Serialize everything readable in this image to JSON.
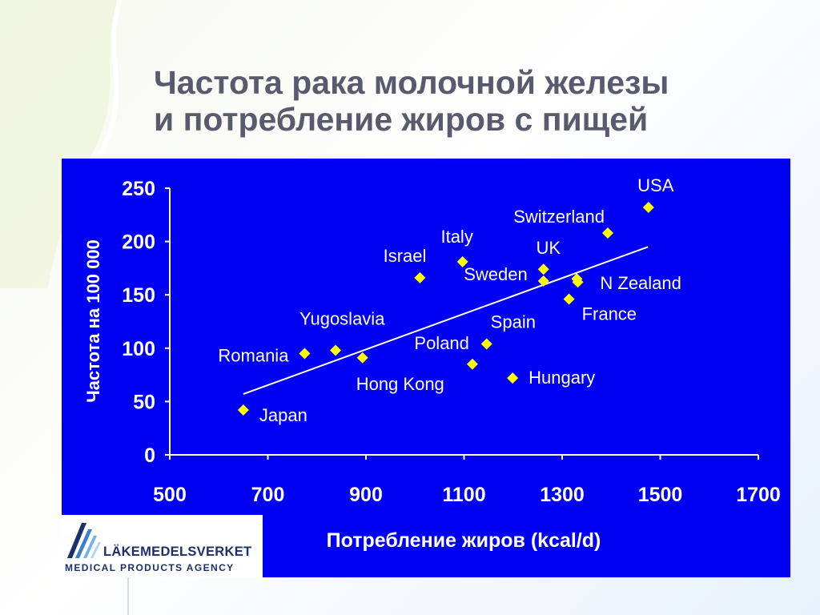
{
  "slide": {
    "title_line1": "Частота рака молочной железы",
    "title_line2": "и потребление жиров с пищей"
  },
  "logo": {
    "name": "LÄKEMEDELSVERKET",
    "subtitle": "MEDICAL PRODUCTS AGENCY"
  },
  "colors": {
    "panel": "#0000f2",
    "marker": "#ffff00",
    "axis": "#ffffff",
    "title": "#5a5a6e"
  },
  "chart_data": {
    "type": "scatter",
    "title": "",
    "xlabel": "Потребление жиров (kcal/d)",
    "ylabel": "Частота на 100 000",
    "xlim": [
      500,
      1700
    ],
    "ylim": [
      0,
      250
    ],
    "xticks": [
      500,
      700,
      900,
      1100,
      1300,
      1500,
      1700
    ],
    "yticks": [
      0,
      50,
      100,
      150,
      200,
      250
    ],
    "grid": false,
    "legend": "none",
    "points": [
      {
        "label": "Japan",
        "x": 650,
        "y": 42
      },
      {
        "label": "Romania",
        "x": 775,
        "y": 95
      },
      {
        "label": "Yugoslavia",
        "x": 838,
        "y": 98
      },
      {
        "label": "Hong Kong",
        "x": 893,
        "y": 91
      },
      {
        "label": "Israel",
        "x": 1010,
        "y": 166
      },
      {
        "label": "Italy",
        "x": 1097,
        "y": 181
      },
      {
        "label": "Poland",
        "x": 1117,
        "y": 85
      },
      {
        "label": "Spain",
        "x": 1146,
        "y": 104
      },
      {
        "label": "Hungary",
        "x": 1199,
        "y": 72
      },
      {
        "label": "UK",
        "x": 1262,
        "y": 174
      },
      {
        "label": "Sweden",
        "x": 1262,
        "y": 163
      },
      {
        "label": "N Zealand",
        "x": 1330,
        "y": 165
      },
      {
        "label": "",
        "x": 1332,
        "y": 162
      },
      {
        "label": "France",
        "x": 1314,
        "y": 146
      },
      {
        "label": "Switzerland",
        "x": 1393,
        "y": 208
      },
      {
        "label": "USA",
        "x": 1476,
        "y": 232
      }
    ],
    "trendline": {
      "x": [
        650,
        1475
      ],
      "y": [
        57,
        195
      ]
    }
  }
}
